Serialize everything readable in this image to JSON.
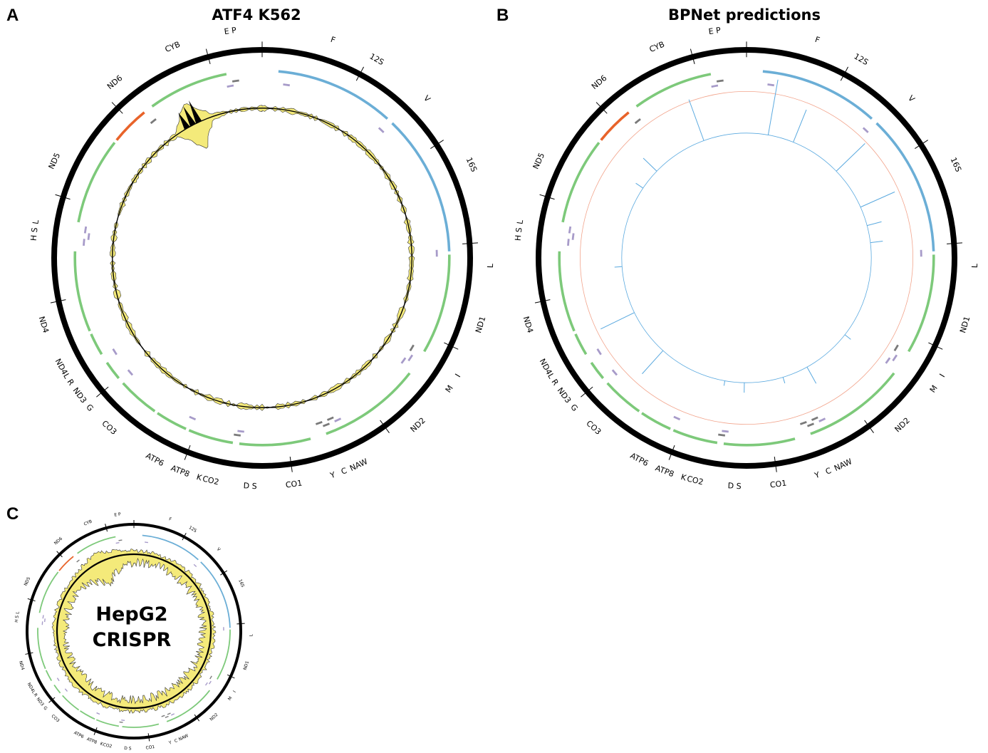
{
  "panels": [
    {
      "letter": "A",
      "title": "ATF4 K562",
      "center_label": "",
      "track": "signal"
    },
    {
      "letter": "B",
      "title": "BPNet predictions",
      "center_label": "",
      "track": "predictions"
    },
    {
      "letter": "C",
      "title": "",
      "center_label_lines": [
        "HepG2",
        "CRISPR"
      ],
      "track": "crispr"
    }
  ],
  "genome_map": {
    "colors": {
      "outer_ring": "#000000",
      "heavy_strand_gene": "#7dc97a",
      "light_strand_gene": "#e8632a",
      "rrna": "#6baed6",
      "trna_light": "#a79bc9",
      "trna_dark": "#7a7a7a",
      "signal_black": "#000000",
      "signal_yellow": "#f4ea7a",
      "prediction_line": "#5aa9df",
      "prediction_ref": "#f2a48c"
    },
    "gene_labels": [
      {
        "text": "F",
        "angle": 18
      },
      {
        "text": "12S",
        "angle": 30
      },
      {
        "text": "V",
        "angle": 46
      },
      {
        "text": "16S",
        "angle": 66
      },
      {
        "text": "L",
        "angle": 92
      },
      {
        "text": "ND1",
        "angle": 107
      },
      {
        "text": "I",
        "angle": 121
      },
      {
        "text": "M",
        "angle": 125
      },
      {
        "text": "ND2",
        "angle": 137
      },
      {
        "text": "NAW",
        "angle": 155
      },
      {
        "text": "C",
        "angle": 159
      },
      {
        "text": "Y",
        "angle": 162
      },
      {
        "text": "CO1",
        "angle": 172
      },
      {
        "text": "D S",
        "angle": 183
      },
      {
        "text": "CO2",
        "angle": 193
      },
      {
        "text": "K",
        "angle": 196
      },
      {
        "text": "ATP8",
        "angle": 201
      },
      {
        "text": "ATP6",
        "angle": 208
      },
      {
        "text": "CO3",
        "angle": 222
      },
      {
        "text": "G",
        "angle": 229
      },
      {
        "text": "ND3",
        "angle": 233
      },
      {
        "text": "R",
        "angle": 237
      },
      {
        "text": "ND4L",
        "angle": 241
      },
      {
        "text": "ND4",
        "angle": 253
      },
      {
        "text": "H",
        "angle": 275
      },
      {
        "text": "S",
        "angle": 277
      },
      {
        "text": "L",
        "angle": 279
      },
      {
        "text": "ND5",
        "angle": 295
      },
      {
        "text": "ND6",
        "angle": 320
      },
      {
        "text": "CYB",
        "angle": 337
      },
      {
        "text": "E P",
        "angle": 352
      }
    ],
    "outer_ticks": [
      0,
      28,
      57,
      86,
      115,
      144,
      172,
      201,
      230,
      258,
      287,
      316,
      345
    ],
    "gene_arcs": [
      {
        "start": 5,
        "end": 42,
        "color": "rrna"
      },
      {
        "start": 44,
        "end": 88,
        "color": "rrna"
      },
      {
        "start": 89,
        "end": 120,
        "color": "heavy_strand_gene"
      },
      {
        "start": 128,
        "end": 160,
        "color": "heavy_strand_gene"
      },
      {
        "start": 165,
        "end": 187,
        "color": "heavy_strand_gene"
      },
      {
        "start": 189,
        "end": 203,
        "color": "heavy_strand_gene"
      },
      {
        "start": 204,
        "end": 214,
        "color": "heavy_strand_gene"
      },
      {
        "start": 215,
        "end": 228,
        "color": "heavy_strand_gene"
      },
      {
        "start": 230,
        "end": 236,
        "color": "heavy_strand_gene"
      },
      {
        "start": 239,
        "end": 246,
        "color": "heavy_strand_gene"
      },
      {
        "start": 247,
        "end": 272,
        "color": "heavy_strand_gene"
      },
      {
        "start": 281,
        "end": 308,
        "color": "heavy_strand_gene"
      },
      {
        "start": 309,
        "end": 321,
        "color": "light_strand_gene"
      },
      {
        "start": 324,
        "end": 349,
        "color": "heavy_strand_gene"
      }
    ],
    "trna_marks": [
      {
        "angle": 8,
        "r": 0.84,
        "color": "trna_light"
      },
      {
        "angle": 43,
        "r": 0.84,
        "color": "trna_light"
      },
      {
        "angle": 88.5,
        "r": 0.84,
        "color": "trna_light"
      },
      {
        "angle": 121,
        "r": 0.84,
        "color": "trna_dark"
      },
      {
        "angle": 124,
        "r": 0.86,
        "color": "trna_light"
      },
      {
        "angle": 126,
        "r": 0.84,
        "color": "trna_light"
      },
      {
        "angle": 155,
        "r": 0.86,
        "color": "trna_light"
      },
      {
        "angle": 157,
        "r": 0.84,
        "color": "trna_dark"
      },
      {
        "angle": 159,
        "r": 0.86,
        "color": "trna_dark"
      },
      {
        "angle": 161,
        "r": 0.84,
        "color": "trna_dark"
      },
      {
        "angle": 187,
        "r": 0.84,
        "color": "trna_light"
      },
      {
        "angle": 188,
        "r": 0.86,
        "color": "trna_dark"
      },
      {
        "angle": 203.5,
        "r": 0.84,
        "color": "trna_light"
      },
      {
        "angle": 229,
        "r": 0.84,
        "color": "trna_light"
      },
      {
        "angle": 237.5,
        "r": 0.84,
        "color": "trna_light"
      },
      {
        "angle": 275,
        "r": 0.86,
        "color": "trna_light"
      },
      {
        "angle": 277,
        "r": 0.84,
        "color": "trna_light"
      },
      {
        "angle": 279,
        "r": 0.86,
        "color": "trna_light"
      },
      {
        "angle": 321.5,
        "r": 0.84,
        "color": "trna_dark"
      },
      {
        "angle": 349.5,
        "r": 0.84,
        "color": "trna_light"
      },
      {
        "angle": 351.5,
        "r": 0.86,
        "color": "trna_dark"
      }
    ],
    "prediction_spikes": [
      {
        "angle": 10,
        "value": 0.45
      },
      {
        "angle": 22,
        "value": 0.28
      },
      {
        "angle": 46,
        "value": 0.32
      },
      {
        "angle": 66,
        "value": 0.3
      },
      {
        "angle": 75,
        "value": 0.12
      },
      {
        "angle": 83,
        "value": 0.1
      },
      {
        "angle": 128,
        "value": 0.06
      },
      {
        "angle": 151,
        "value": 0.15
      },
      {
        "angle": 163,
        "value": 0.05
      },
      {
        "angle": 181,
        "value": 0.08
      },
      {
        "angle": 190,
        "value": 0.04
      },
      {
        "angle": 222,
        "value": 0.25
      },
      {
        "angle": 244,
        "value": 0.3
      },
      {
        "angle": 266,
        "value": 0.06
      },
      {
        "angle": 304,
        "value": 0.07
      },
      {
        "angle": 314,
        "value": 0.15
      },
      {
        "angle": 340,
        "value": 0.35
      }
    ]
  }
}
